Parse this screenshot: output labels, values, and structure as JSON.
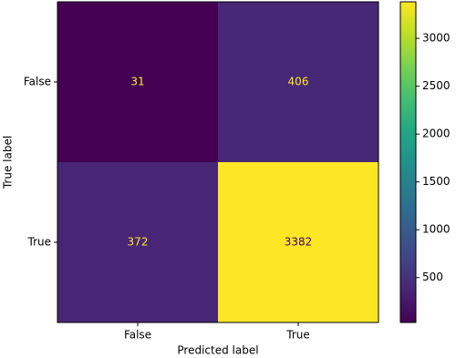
{
  "chart_data": {
    "type": "heatmap",
    "xlabel": "Predicted label",
    "ylabel": "True label",
    "x_categories": [
      "False",
      "True"
    ],
    "y_categories": [
      "False",
      "True"
    ],
    "values": [
      [
        31,
        406
      ],
      [
        372,
        3382
      ]
    ],
    "colormap": "viridis",
    "colorbar_lim": [
      31,
      3382
    ],
    "colorbar_ticks": [
      500,
      1000,
      1500,
      2000,
      2500,
      3000
    ]
  }
}
